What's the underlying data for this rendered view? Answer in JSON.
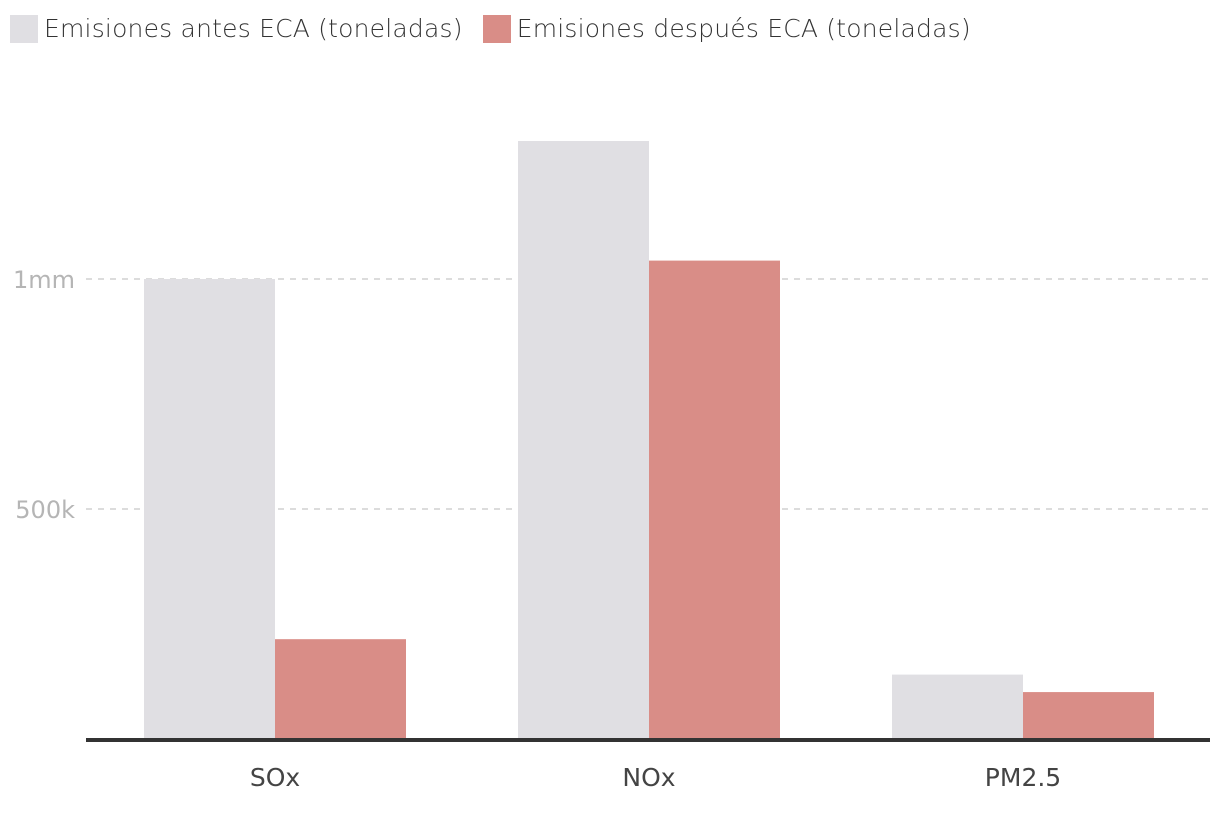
{
  "chart_data": {
    "type": "bar",
    "categories": [
      "SOx",
      "NOx",
      "PM2.5"
    ],
    "series": [
      {
        "name": "Emisiones antes ECA (toneladas)",
        "color": "#e0dfe3",
        "values": [
          1000000,
          1300000,
          140000
        ]
      },
      {
        "name": "Emisiones después ECA (toneladas)",
        "color": "#d98d87",
        "values": [
          217000,
          1040000,
          102000
        ]
      }
    ],
    "yticks": [
      {
        "value": 500000,
        "label": "500k"
      },
      {
        "value": 1000000,
        "label": "1mm"
      }
    ],
    "ylim": [
      0,
      1300000
    ],
    "grid": true,
    "legend_position": "top-left",
    "axis_color": "#333333",
    "grid_color": "#d0d0d0"
  }
}
